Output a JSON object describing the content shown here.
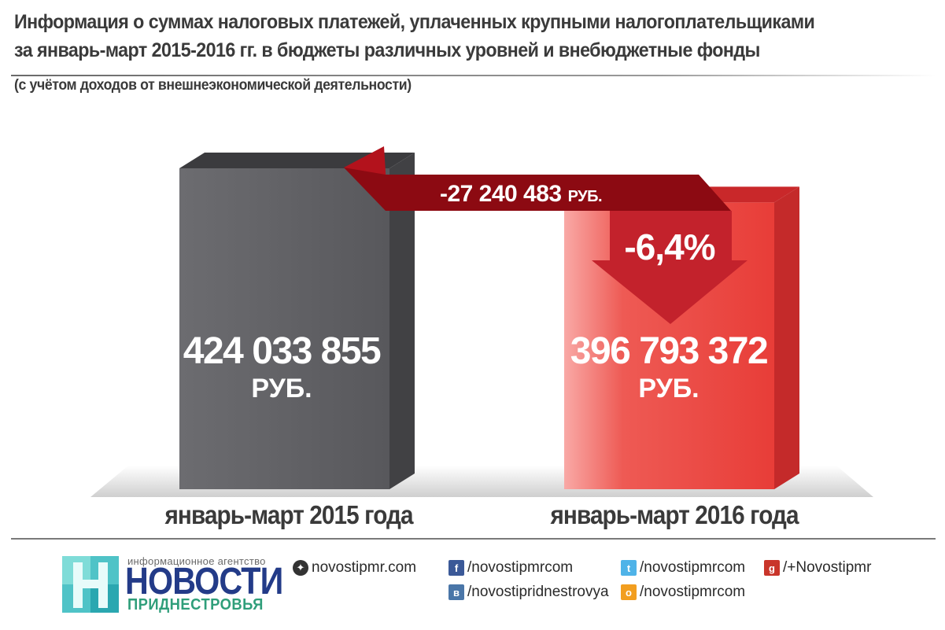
{
  "header": {
    "title_line1": "Информация о суммах налоговых платежей, уплаченных крупными налогоплательщиками",
    "title_line2": "за январь-март 2015-2016 гг. в бюджеты различных уровней и внебюджетные фонды",
    "subtitle": "(с учётом доходов от внешнеэкономической деятельности)"
  },
  "chart_data": {
    "type": "bar",
    "categories": [
      "январь-март 2015 года",
      "январь-март 2016 года"
    ],
    "values": [
      424033855,
      396793372
    ],
    "value_labels": [
      "424 033 855",
      "396 793 372"
    ],
    "unit": "РУБ.",
    "difference_label": "-27 240 483",
    "difference_unit": "РУБ.",
    "percent_change_label": "-6,4%",
    "colors": [
      "#5a5a5e",
      "#e8423d"
    ]
  },
  "footer": {
    "logo_tagline": "информационное агентство",
    "logo_name": "НОВОСТИ",
    "logo_sub": "ПРИДНЕСТРОВЬЯ",
    "links": {
      "site": "novostipmr.com",
      "facebook": "/novostipmrcom",
      "vk": "/novostipridnestrovya",
      "twitter": "/novostipmrcom",
      "odnoklassniki": "/novostipmrcom",
      "googleplus": "/+Novostipmr"
    },
    "icons": {
      "site": "globe-icon",
      "facebook": "facebook-icon",
      "vk": "vk-icon",
      "twitter": "twitter-icon",
      "odnoklassniki": "odnoklassniki-icon",
      "googleplus": "google-plus-icon"
    }
  }
}
